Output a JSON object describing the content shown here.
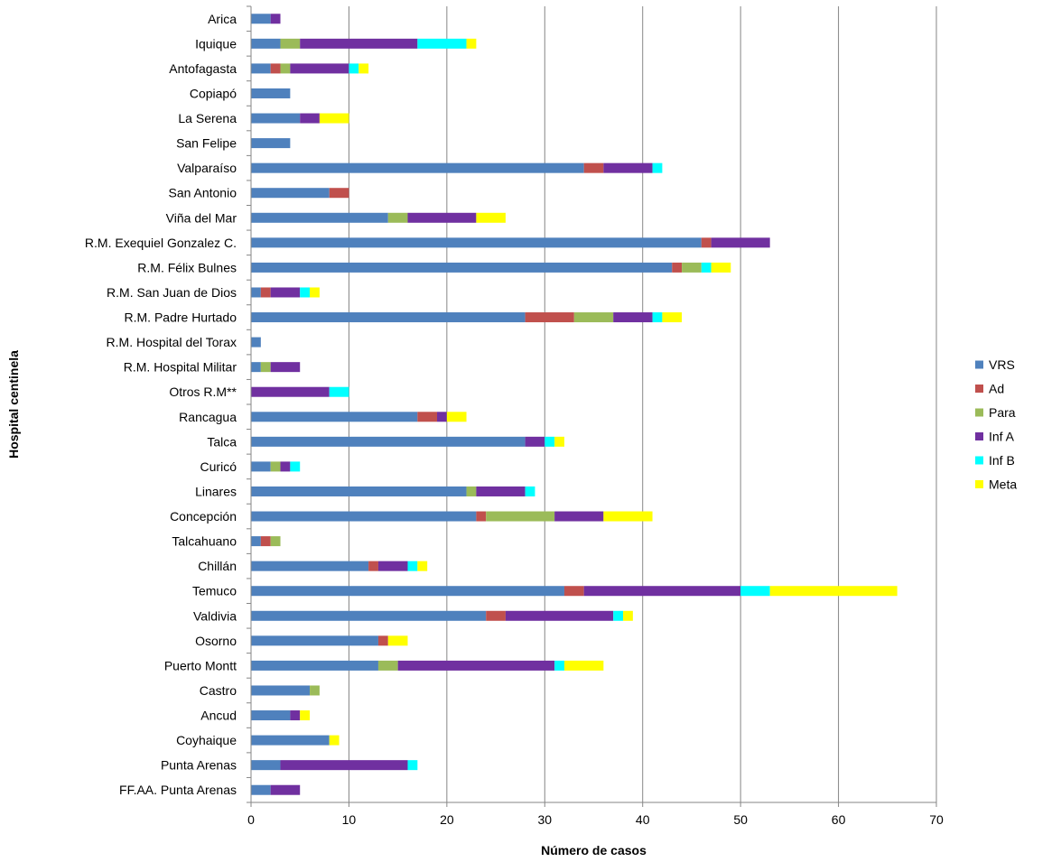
{
  "chart_data": {
    "type": "bar",
    "orientation": "horizontal",
    "stacked": true,
    "title": "",
    "xlabel": "Número de casos",
    "ylabel": "Hospital centinela",
    "xlim": [
      0,
      70
    ],
    "xticks": [
      0,
      10,
      20,
      30,
      40,
      50,
      60,
      70
    ],
    "grid": "vertical",
    "legend_position": "right",
    "categories": [
      "Arica",
      "Iquique",
      "Antofagasta",
      "Copiapó",
      "La Serena",
      "San Felipe",
      "Valparaíso",
      "San Antonio",
      "Viña del Mar",
      "R.M. Exequiel Gonzalez C.",
      "R.M. Félix Bulnes",
      "R.M. San Juan de Dios",
      "R.M. Padre Hurtado",
      "R.M. Hospital del Torax",
      "R.M. Hospital Militar",
      "Otros R.M**",
      "Rancagua",
      "Talca",
      "Curicó",
      "Linares",
      "Concepción",
      "Talcahuano",
      "Chillán",
      "Temuco",
      "Valdivia",
      "Osorno",
      "Puerto Montt",
      "Castro",
      "Ancud",
      "Coyhaique",
      "Punta Arenas",
      "FF.AA. Punta Arenas"
    ],
    "series": [
      {
        "name": "VRS",
        "color": "#4F81BD",
        "values": [
          2,
          3,
          2,
          4,
          5,
          4,
          34,
          8,
          14,
          46,
          43,
          1,
          28,
          1,
          1,
          0,
          17,
          28,
          2,
          22,
          23,
          1,
          12,
          32,
          24,
          13,
          13,
          6,
          4,
          8,
          3,
          2
        ]
      },
      {
        "name": "Ad",
        "color": "#C0504D",
        "values": [
          0,
          0,
          1,
          0,
          0,
          0,
          2,
          2,
          0,
          1,
          1,
          1,
          5,
          0,
          0,
          0,
          2,
          0,
          0,
          0,
          1,
          1,
          1,
          2,
          2,
          1,
          0,
          0,
          0,
          0,
          0,
          0
        ]
      },
      {
        "name": "Para",
        "color": "#9BBB59",
        "values": [
          0,
          2,
          1,
          0,
          0,
          0,
          0,
          0,
          2,
          0,
          2,
          0,
          4,
          0,
          1,
          0,
          0,
          0,
          1,
          1,
          7,
          1,
          0,
          0,
          0,
          0,
          2,
          1,
          0,
          0,
          0,
          0
        ]
      },
      {
        "name": "Inf A",
        "color": "#7030A0",
        "values": [
          1,
          12,
          6,
          0,
          2,
          0,
          5,
          0,
          7,
          6,
          0,
          3,
          4,
          0,
          3,
          8,
          1,
          2,
          1,
          5,
          5,
          0,
          3,
          16,
          11,
          0,
          16,
          0,
          1,
          0,
          13,
          3
        ]
      },
      {
        "name": "Inf B",
        "color": "#00FFFF",
        "values": [
          0,
          5,
          1,
          0,
          0,
          0,
          1,
          0,
          0,
          0,
          1,
          1,
          1,
          0,
          0,
          2,
          0,
          1,
          1,
          1,
          0,
          0,
          1,
          3,
          1,
          0,
          1,
          0,
          0,
          0,
          1,
          0
        ]
      },
      {
        "name": "Meta",
        "color": "#FFFF00",
        "values": [
          0,
          1,
          1,
          0,
          3,
          0,
          0,
          0,
          3,
          0,
          2,
          1,
          2,
          0,
          0,
          0,
          2,
          1,
          0,
          0,
          5,
          0,
          1,
          13,
          1,
          2,
          4,
          0,
          1,
          1,
          0,
          0
        ]
      }
    ]
  }
}
